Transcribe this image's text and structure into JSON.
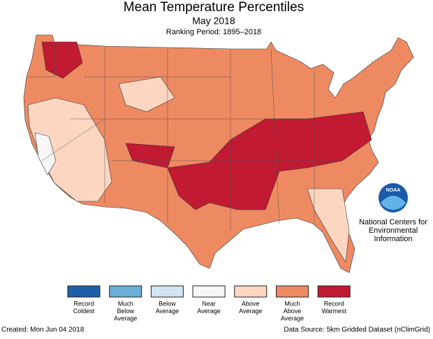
{
  "header": {
    "title": "Mean Temperature Percentiles",
    "subtitle": "May 2018",
    "period": "Ranking Period: 1895–2018"
  },
  "legend": [
    {
      "lines": [
        "Record",
        "Coldest"
      ],
      "color": "#1f5fa8"
    },
    {
      "lines": [
        "Much",
        "Below",
        "Average"
      ],
      "color": "#6aaed6"
    },
    {
      "lines": [
        "Below",
        "Average"
      ],
      "color": "#d2e4f1"
    },
    {
      "lines": [
        "Near",
        "Average"
      ],
      "color": "#f7f7f7"
    },
    {
      "lines": [
        "Above",
        "Average"
      ],
      "color": "#fdd6c2"
    },
    {
      "lines": [
        "Much",
        "Above",
        "Average"
      ],
      "color": "#ee8a62"
    },
    {
      "lines": [
        "Record",
        "Warmest"
      ],
      "color": "#c11a32"
    }
  ],
  "logo": {
    "mark": "NOAA",
    "lines": [
      "National Centers for",
      "Environmental",
      "Information"
    ]
  },
  "footer": {
    "created": "Created: Mon Jun 04 2018",
    "source": "Data Source: 5km Gridded Dataset (nClimGrid)"
  }
}
